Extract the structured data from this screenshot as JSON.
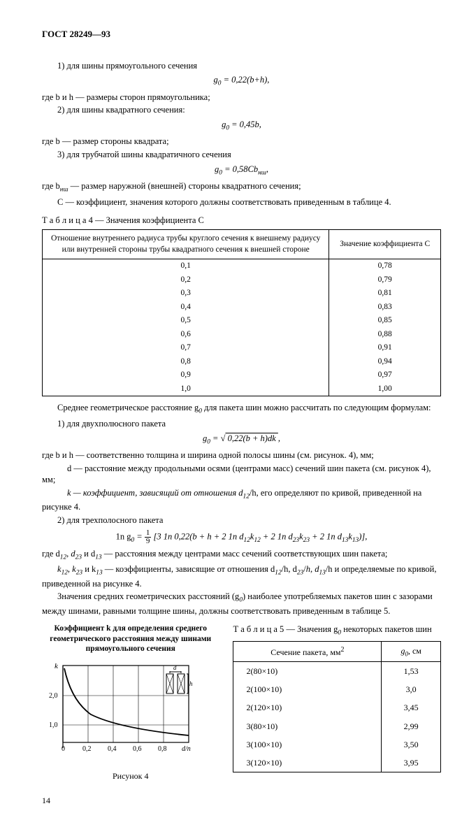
{
  "header": "ГОСТ 28249—93",
  "lines": {
    "l1": "1) для шины прямоугольного сечения",
    "l2": "где b и h — размеры сторон прямоугольника;",
    "l3": "2) для шины квадратного сечения:",
    "l4": "где b — размер стороны квадрата;",
    "l5": "3) для трубчатой шины квадратичного сечения",
    "l6a": "где b",
    "l6b": " — размер наружной (внешней) стороны квадратного сечения;",
    "l7": "С — коэффициент, значения которого должны соответствовать приведенным в таблице 4.",
    "p2a": "Среднее геометрическое расстояние g",
    "p2b": " для пакета шин можно рассчитать по следующим формулам:",
    "p3": "1) для двухполюсного пакета",
    "p4": "где b и h — соответственно толщина и ширина одной полосы шины (см. рисунок. 4), мм;",
    "p5": "d — расстояние между продольными осями (центрами масс) сечений шин пакета (см. рисунок 4), мм;",
    "p6a": "k — коэффициент, зависящий от отношения d",
    "p6b": "/h, его определяют по кривой, приведенной на рисунке 4.",
    "p7": "2) для трехполосного пакета",
    "p8a": "где d",
    "p8b": " и d",
    "p8c": " — расстояния между центрами масс сечений соответствующих шин пакета;",
    "p9a": "k",
    "p9b": " и k",
    "p9c": " — коэффициенты, зависящие от отношения d",
    "p9d": "/h, d",
    "p9e": "/h и определяемые по кривой, приведенной на рисунке 4.",
    "p10a": "Значения средних геометрических расстояний (g",
    "p10b": ") наиболее употребляемых пакетов шин с зазорами между шинами, равными толщине шины, должны соответствовать приведенным в таблице 5."
  },
  "sub": {
    "nsh": "нш",
    "zero": "0",
    "d12": "12",
    "d23": "23",
    "d13": "13"
  },
  "formulas": {
    "f1a": "g",
    "f1b": " = 0,22(b+h),",
    "f2a": "g",
    "f2b": " = 0,45b,",
    "f3a": "g",
    "f3b": " = 0,58Сb",
    "f3c": ",",
    "f4a": "g",
    "f4b": " = √",
    "f4c": " 0,22(b + h)dk ",
    "f4d": " ,",
    "f5a": "1n g",
    "f5b": " = ",
    "f5num": "1",
    "f5den": "9",
    "f5c": " [3 1n 0,22(b + h + 2 1n d",
    "f5d": "k",
    "f5e": " + 2 1n d",
    "f5f": "k",
    "f5g": " + 2 1n d",
    "f5h": "k",
    "f5i": ")],"
  },
  "table4": {
    "caption_prefix": "Т а б л и ц а  4",
    "caption_rest": " — Значения коэффициента С",
    "col1": "Отношение внутреннего радиуса трубы круглого сечения к внешнему радиусу или внутренней стороны трубы квадратного сечения к внешней стороне",
    "col2": "Значение коэффициента С",
    "rows": [
      [
        "0,1",
        "0,78"
      ],
      [
        "0,2",
        "0,79"
      ],
      [
        "0,3",
        "0,81"
      ],
      [
        "0,4",
        "0,83"
      ],
      [
        "0,5",
        "0,85"
      ],
      [
        "0,6",
        "0,88"
      ],
      [
        "0,7",
        "0,91"
      ],
      [
        "0,8",
        "0,94"
      ],
      [
        "0,9",
        "0,97"
      ],
      [
        "1,0",
        "1,00"
      ]
    ]
  },
  "chart": {
    "title": "Коэффициент k для определения среднего геометрического расстояния между шинами прямоугольного сечения",
    "ylabel": "k",
    "yticks": [
      "1,0",
      "2,0"
    ],
    "xticks": [
      "0",
      "0,2",
      "0,4",
      "0,6",
      "0,8"
    ],
    "xlabel": "d/n",
    "inset_d": "d",
    "inset_h": "h",
    "caption": "Рисунок 4",
    "curve_color": "#000000",
    "grid_color": "#000000",
    "bg": "#ffffff"
  },
  "table5": {
    "caption_prefix": "Т а б л и ц а  5",
    "caption_rest_a": " — Значения g",
    "caption_rest_b": " некоторых пакетов шин",
    "col1a": "Сечение пакета, мм",
    "col1b": "2",
    "col2a": "g",
    "col2b": ", см",
    "rows": [
      [
        "2(80×10)",
        "1,53"
      ],
      [
        "2(100×10)",
        "3,0"
      ],
      [
        "2(120×10)",
        "3,45"
      ],
      [
        "3(80×10)",
        "2,99"
      ],
      [
        "3(100×10)",
        "3,50"
      ],
      [
        "3(120×10)",
        "3,95"
      ]
    ]
  },
  "page": "14"
}
